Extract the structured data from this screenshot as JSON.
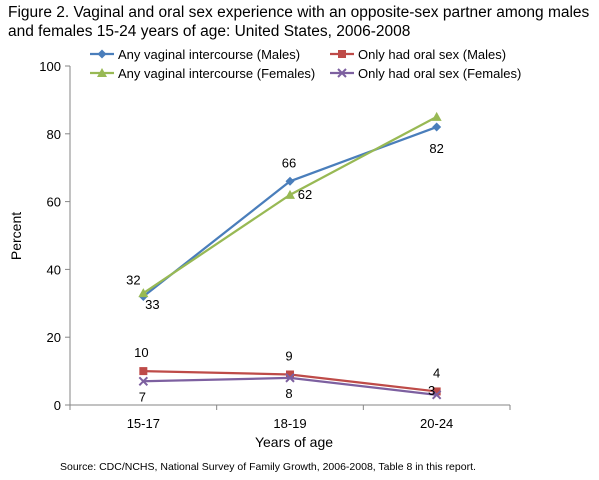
{
  "title": "Figure 2. Vaginal and oral sex experience with an opposite-sex partner among males and females 15-24 years of age: United States, 2006-2008",
  "source": "Source:  CDC/NCHS, National Survey of Family Growth, 2006-2008, Table 8 in this report.",
  "chart_data": {
    "type": "line",
    "categories": [
      "15-17",
      "18-19",
      "20-24"
    ],
    "xlabel": "Years of age",
    "ylabel": "Percent",
    "ylim": [
      0,
      100
    ],
    "yticks": [
      0,
      20,
      40,
      60,
      80,
      100
    ],
    "grid": false,
    "legend_position": "top",
    "series": [
      {
        "name": "Any vaginal intercourse (Males)",
        "values": [
          32,
          66,
          82
        ],
        "color": "#4a7ebb",
        "marker": "diamond",
        "labels": [
          "32",
          "66",
          "82"
        ]
      },
      {
        "name": "Only had oral sex (Males)",
        "values": [
          10,
          9,
          4
        ],
        "color": "#be4b48",
        "marker": "square",
        "labels": [
          "10",
          "9",
          "4"
        ]
      },
      {
        "name": "Any vaginal intercourse (Females)",
        "values": [
          33,
          62,
          85
        ],
        "color": "#98b954",
        "marker": "triangle",
        "labels": [
          "33",
          "62",
          ""
        ]
      },
      {
        "name": "Only had oral sex (Females)",
        "values": [
          7,
          8,
          3
        ],
        "color": "#7d60a0",
        "marker": "x",
        "labels": [
          "7",
          "8",
          "3"
        ]
      }
    ]
  }
}
